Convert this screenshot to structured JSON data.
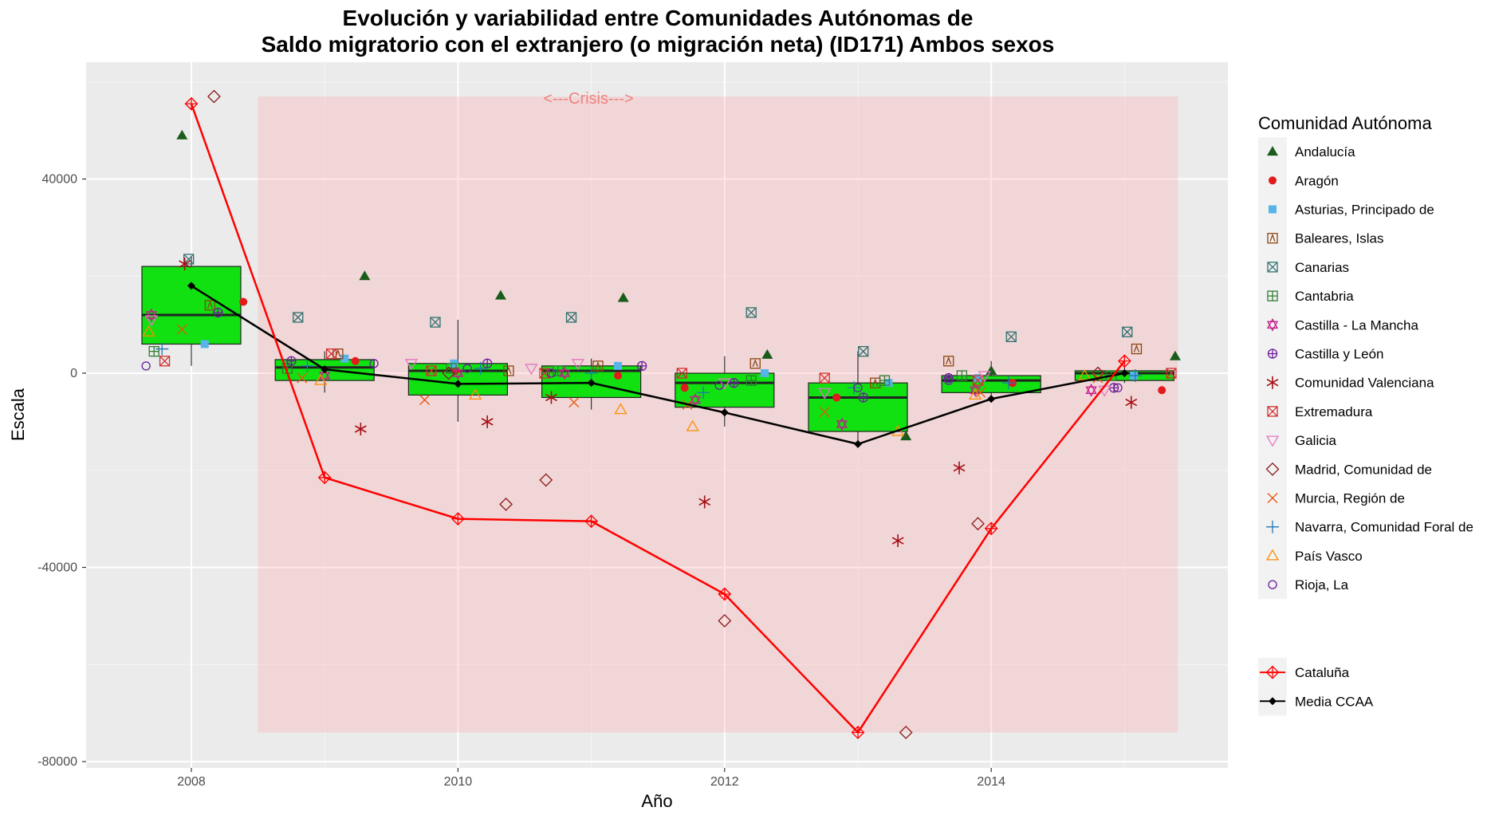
{
  "chart_data": {
    "type": "box-scatter-line",
    "title_line1": "Evolución y variabilidad entre Comunidades Autónomas de",
    "title_line2": "Saldo migratorio con el extranjero (o migración neta) (ID171) Ambos sexos",
    "xlabel": "Año",
    "ylabel": "Escala",
    "x_ticks": [
      "2008",
      "2010",
      "2012",
      "2014"
    ],
    "y_ticks": [
      "40000",
      "0",
      "-40000",
      "-80000"
    ],
    "xlim": [
      2007.3,
      2015.6
    ],
    "ylim": [
      -81500,
      64000
    ],
    "grid": true,
    "crisis": {
      "label": "<---Crisis--->",
      "x_from": 2008.5,
      "x_to": 2015.4,
      "y_from": -74000,
      "y_to": 57000
    },
    "boxes": [
      {
        "year": 2008,
        "q1": 6000,
        "median": 12000,
        "q3": 22000,
        "whisker_low": 1500,
        "whisker_high": 24000
      },
      {
        "year": 2009,
        "q1": -1500,
        "median": 1200,
        "q3": 2800,
        "whisker_low": -4000,
        "whisker_high": 4500
      },
      {
        "year": 2010,
        "q1": -4500,
        "median": 500,
        "q3": 2000,
        "whisker_low": -10000,
        "whisker_high": 11000
      },
      {
        "year": 2011,
        "q1": -5000,
        "median": 500,
        "q3": 1500,
        "whisker_low": -7500,
        "whisker_high": 3000
      },
      {
        "year": 2012,
        "q1": -7000,
        "median": -2000,
        "q3": 0,
        "whisker_low": -11000,
        "whisker_high": 3500
      },
      {
        "year": 2013,
        "q1": -12000,
        "median": -5000,
        "q3": -2000,
        "whisker_low": -14000,
        "whisker_high": 4500
      },
      {
        "year": 2014,
        "q1": -4000,
        "median": -1500,
        "q3": -500,
        "whisker_low": -5000,
        "whisker_high": 2500
      },
      {
        "year": 2015,
        "q1": -1500,
        "median": 0,
        "q3": 500,
        "whisker_low": -2000,
        "whisker_high": 1500
      }
    ],
    "media_ccaa": {
      "name": "Media CCAA",
      "color": "#000000",
      "x": [
        2008,
        2009,
        2010,
        2011,
        2012,
        2013,
        2014,
        2015
      ],
      "y": [
        18000,
        800,
        -2200,
        -2000,
        -8100,
        -14600,
        -5300,
        0
      ]
    },
    "cataluna": {
      "name": "Cataluña",
      "color": "#ff0000",
      "x": [
        2008,
        2009,
        2010,
        2011,
        2012,
        2013,
        2014,
        2015
      ],
      "y": [
        55500,
        -21500,
        -30000,
        -30500,
        -45500,
        -74000,
        -32000,
        2500
      ]
    },
    "series": [
      {
        "name": "Andalucía",
        "symbol": "triangle-filled",
        "color": "#1a5c1a",
        "points": [
          [
            2007.93,
            49000
          ],
          [
            2009.3,
            20000
          ],
          [
            2010.32,
            16000
          ],
          [
            2011.24,
            15500
          ],
          [
            2012.32,
            3800
          ],
          [
            2013.36,
            -13000
          ],
          [
            2014.0,
            500
          ],
          [
            2015.38,
            3500
          ]
        ]
      },
      {
        "name": "Aragón",
        "symbol": "circle-filled",
        "color": "#e31a1c",
        "points": [
          [
            2008.39,
            14700
          ],
          [
            2009.23,
            2500
          ],
          [
            2009.98,
            500
          ],
          [
            2011.2,
            -500
          ],
          [
            2011.7,
            -3000
          ],
          [
            2012.84,
            -5000
          ],
          [
            2014.16,
            -2000
          ],
          [
            2015.28,
            -3500
          ]
        ]
      },
      {
        "name": "Asturias, Principado de",
        "symbol": "square-filled",
        "color": "#56b4e9",
        "points": [
          [
            2008.1,
            6000
          ],
          [
            2009.15,
            3000
          ],
          [
            2009.97,
            2000
          ],
          [
            2011.2,
            1500
          ],
          [
            2012.3,
            0
          ],
          [
            2013.23,
            -2000
          ],
          [
            2013.9,
            -1000
          ],
          [
            2015.07,
            -500
          ]
        ]
      },
      {
        "name": "Baleares, Islas",
        "symbol": "square-x",
        "color": "#8b4513",
        "points": [
          [
            2008.14,
            14000
          ],
          [
            2009.1,
            4000
          ],
          [
            2010.38,
            500
          ],
          [
            2011.05,
            1500
          ],
          [
            2012.23,
            2000
          ],
          [
            2013.13,
            -2000
          ],
          [
            2013.68,
            2500
          ],
          [
            2015.09,
            5000
          ]
        ]
      },
      {
        "name": "Canarias",
        "symbol": "square-x2",
        "color": "#2f6f6f",
        "points": [
          [
            2007.98,
            23500
          ],
          [
            2008.8,
            11500
          ],
          [
            2009.83,
            10500
          ],
          [
            2010.85,
            11500
          ],
          [
            2012.2,
            12500
          ],
          [
            2013.04,
            4500
          ],
          [
            2014.15,
            7500
          ],
          [
            2015.02,
            8500
          ]
        ]
      },
      {
        "name": "Cantabria",
        "symbol": "square-plus",
        "color": "#2e7d32",
        "points": [
          [
            2007.72,
            4500
          ],
          [
            2008.72,
            1000
          ],
          [
            2009.95,
            1000
          ],
          [
            2010.75,
            500
          ],
          [
            2012.2,
            -1500
          ],
          [
            2013.2,
            -1500
          ],
          [
            2013.78,
            -500
          ],
          [
            2014.9,
            -500
          ]
        ]
      },
      {
        "name": "Castilla - La Mancha",
        "symbol": "star-of-david",
        "color": "#c51b8a",
        "points": [
          [
            2007.7,
            12000
          ],
          [
            2009.0,
            -500
          ],
          [
            2010.0,
            0
          ],
          [
            2010.8,
            0
          ],
          [
            2011.78,
            -5500
          ],
          [
            2012.88,
            -10500
          ],
          [
            2013.88,
            -3500
          ],
          [
            2014.75,
            -3500
          ]
        ]
      },
      {
        "name": "Castilla y León",
        "symbol": "circle-plus",
        "color": "#6a1b9a",
        "points": [
          [
            2008.2,
            12500
          ],
          [
            2008.75,
            2500
          ],
          [
            2010.22,
            2000
          ],
          [
            2011.38,
            1500
          ],
          [
            2012.07,
            -2000
          ],
          [
            2013.04,
            -5000
          ],
          [
            2013.68,
            -1000
          ],
          [
            2014.92,
            -3000
          ]
        ]
      },
      {
        "name": "Comunidad Valenciana",
        "symbol": "asterisk",
        "color": "#a50f15",
        "points": [
          [
            2007.95,
            22500
          ],
          [
            2009.27,
            -11500
          ],
          [
            2010.22,
            -10000
          ],
          [
            2010.7,
            -5000
          ],
          [
            2011.85,
            -26500
          ],
          [
            2013.3,
            -34500
          ],
          [
            2013.76,
            -19500
          ],
          [
            2015.05,
            -6000
          ]
        ]
      },
      {
        "name": "Extremadura",
        "symbol": "square-cross",
        "color": "#d32f2f",
        "points": [
          [
            2007.8,
            2500
          ],
          [
            2009.05,
            4000
          ],
          [
            2009.8,
            500
          ],
          [
            2010.65,
            0
          ],
          [
            2011.68,
            0
          ],
          [
            2012.75,
            -1000
          ],
          [
            2013.9,
            -1500
          ],
          [
            2015.35,
            0
          ]
        ]
      },
      {
        "name": "Galicia",
        "symbol": "triangle-down",
        "color": "#e377c2",
        "points": [
          [
            2007.7,
            11000
          ],
          [
            2009.65,
            2000
          ],
          [
            2010.55,
            1000
          ],
          [
            2010.9,
            2000
          ],
          [
            2012.0,
            -2000
          ],
          [
            2012.75,
            -4000
          ],
          [
            2013.95,
            -500
          ],
          [
            2014.85,
            -3500
          ]
        ]
      },
      {
        "name": "Madrid, Comunidad de",
        "symbol": "diamond",
        "color": "#8b1a1a",
        "points": [
          [
            2008.17,
            57000
          ],
          [
            2009.93,
            0
          ],
          [
            2010.36,
            -27000
          ],
          [
            2010.66,
            -22000
          ],
          [
            2012.0,
            -51000
          ],
          [
            2013.36,
            -74000
          ],
          [
            2013.9,
            -31000
          ],
          [
            2014.8,
            0
          ]
        ]
      },
      {
        "name": "Murcia, Región de",
        "symbol": "x",
        "color": "#e6550d",
        "points": [
          [
            2007.93,
            9000
          ],
          [
            2008.83,
            -1000
          ],
          [
            2009.75,
            -5500
          ],
          [
            2010.87,
            -6000
          ],
          [
            2011.72,
            -6500
          ],
          [
            2012.75,
            -8000
          ],
          [
            2013.92,
            -4000
          ],
          [
            2014.8,
            -1000
          ]
        ]
      },
      {
        "name": "Navarra, Comunidad Foral de",
        "symbol": "plus",
        "color": "#1f78b4",
        "points": [
          [
            2007.78,
            5000
          ],
          [
            2008.87,
            1500
          ],
          [
            2010.17,
            1000
          ],
          [
            2011.0,
            0
          ],
          [
            2011.84,
            -4000
          ],
          [
            2012.97,
            -3000
          ],
          [
            2014.13,
            -2000
          ],
          [
            2015.08,
            -500
          ]
        ]
      },
      {
        "name": "País Vasco",
        "symbol": "triangle-open",
        "color": "#ff8c00",
        "points": [
          [
            2007.68,
            8500
          ],
          [
            2008.97,
            -1500
          ],
          [
            2010.13,
            -4500
          ],
          [
            2011.22,
            -7500
          ],
          [
            2011.76,
            -11000
          ],
          [
            2013.3,
            -12000
          ],
          [
            2013.88,
            -4500
          ],
          [
            2014.7,
            -500
          ]
        ]
      },
      {
        "name": "Rioja, La",
        "symbol": "circle-open",
        "color": "#6a1b9a",
        "points": [
          [
            2007.66,
            1500
          ],
          [
            2009.37,
            2000
          ],
          [
            2010.07,
            1000
          ],
          [
            2010.7,
            0
          ],
          [
            2011.96,
            -2500
          ],
          [
            2013.0,
            -3000
          ],
          [
            2013.68,
            -1500
          ],
          [
            2014.95,
            -3000
          ]
        ]
      }
    ]
  }
}
